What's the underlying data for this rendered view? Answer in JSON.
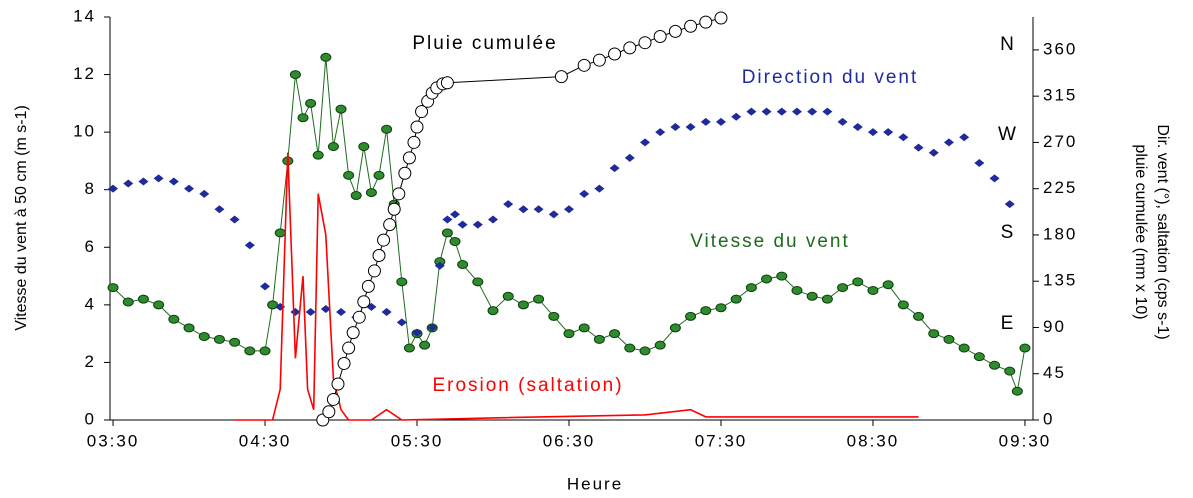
{
  "chart_data": {
    "type": "line",
    "x_label": "Heure",
    "y_label": "Vitesse du vent à 50 cm (m s-1)",
    "y2_label": [
      "Dir. vent (°), saltation (cps s-1)",
      "pluie cumulée (mm x 10)"
    ],
    "xlim": [
      3.48,
      9.553
    ],
    "xticks": [
      {
        "value": 3.5,
        "label": "03:30"
      },
      {
        "value": 4.5,
        "label": "04:30"
      },
      {
        "value": 5.5,
        "label": "05:30"
      },
      {
        "value": 6.5,
        "label": "06:30"
      },
      {
        "value": 7.5,
        "label": "07:30"
      },
      {
        "value": 8.5,
        "label": "08:30"
      },
      {
        "value": 9.5,
        "label": "09:30"
      }
    ],
    "ylim": [
      0,
      14
    ],
    "yticks": [
      0,
      2,
      4,
      6,
      8,
      10,
      12,
      14
    ],
    "y2lim": [
      0,
      392
    ],
    "y2ticks": [
      0,
      45,
      90,
      135,
      180,
      225,
      270,
      315,
      360
    ],
    "annotations": [
      "Pluie cumulée",
      "Direction du vent",
      "Vitesse du vent",
      "Erosion (saltation)",
      "N",
      "W",
      "S",
      "E"
    ],
    "series": [
      {
        "name": "Vitesse du vent",
        "color": "#1e6b1e",
        "marker": "circle",
        "line": true,
        "axis": "y",
        "x": [
          3.5,
          3.6,
          3.7,
          3.8,
          3.9,
          4.0,
          4.1,
          4.2,
          4.3,
          4.4,
          4.5,
          4.55,
          4.6,
          4.65,
          4.7,
          4.75,
          4.8,
          4.85,
          4.9,
          4.95,
          5.0,
          5.05,
          5.1,
          5.15,
          5.2,
          5.25,
          5.3,
          5.35,
          5.4,
          5.45,
          5.5,
          5.55,
          5.6,
          5.65,
          5.7,
          5.75,
          5.8,
          5.9,
          6.0,
          6.1,
          6.2,
          6.3,
          6.4,
          6.5,
          6.6,
          6.7,
          6.8,
          6.9,
          7.0,
          7.1,
          7.2,
          7.3,
          7.4,
          7.5,
          7.6,
          7.7,
          7.8,
          7.9,
          8.0,
          8.1,
          8.2,
          8.3,
          8.4,
          8.5,
          8.6,
          8.7,
          8.8,
          8.9,
          9.0,
          9.1,
          9.2,
          9.3,
          9.4,
          9.45,
          9.5
        ],
        "values": [
          4.6,
          4.1,
          4.2,
          4.0,
          3.5,
          3.2,
          2.9,
          2.8,
          2.7,
          2.4,
          2.4,
          4.0,
          6.5,
          9.0,
          12.0,
          10.5,
          11.0,
          9.2,
          12.6,
          9.5,
          10.8,
          8.5,
          7.8,
          9.5,
          7.9,
          8.5,
          10.1,
          7.5,
          4.8,
          2.5,
          3.0,
          2.6,
          3.2,
          5.5,
          6.5,
          6.2,
          5.4,
          4.8,
          3.8,
          4.3,
          4.0,
          4.2,
          3.6,
          3.0,
          3.2,
          2.8,
          3.0,
          2.5,
          2.4,
          2.6,
          3.2,
          3.6,
          3.8,
          3.9,
          4.2,
          4.6,
          4.9,
          5.0,
          4.5,
          4.3,
          4.2,
          4.6,
          4.8,
          4.5,
          4.7,
          4.0,
          3.6,
          3.0,
          2.8,
          2.5,
          2.2,
          1.9,
          1.7,
          1.0,
          2.5
        ]
      },
      {
        "name": "Direction du vent",
        "color": "#1f2a9c",
        "marker": "diamond",
        "line": false,
        "axis": "y2",
        "x": [
          3.5,
          3.6,
          3.7,
          3.8,
          3.9,
          4.0,
          4.1,
          4.2,
          4.3,
          4.4,
          4.5,
          4.6,
          4.7,
          4.8,
          4.9,
          5.0,
          5.1,
          5.2,
          5.3,
          5.4,
          5.5,
          5.6,
          5.65,
          5.7,
          5.75,
          5.8,
          5.9,
          6.0,
          6.1,
          6.2,
          6.3,
          6.4,
          6.5,
          6.6,
          6.7,
          6.8,
          6.9,
          7.0,
          7.1,
          7.2,
          7.3,
          7.4,
          7.5,
          7.6,
          7.7,
          7.8,
          7.9,
          8.0,
          8.1,
          8.2,
          8.3,
          8.4,
          8.5,
          8.6,
          8.7,
          8.8,
          8.9,
          9.0,
          9.1,
          9.2,
          9.3,
          9.4
        ],
        "values": [
          225,
          230,
          232,
          235,
          232,
          225,
          220,
          205,
          195,
          170,
          130,
          110,
          105,
          105,
          108,
          105,
          100,
          110,
          105,
          95,
          85,
          90,
          150,
          195,
          200,
          190,
          190,
          195,
          210,
          205,
          205,
          200,
          205,
          220,
          225,
          245,
          255,
          270,
          280,
          285,
          285,
          290,
          290,
          295,
          300,
          300,
          300,
          300,
          300,
          300,
          290,
          285,
          280,
          280,
          275,
          265,
          260,
          270,
          275,
          250,
          235,
          210
        ]
      },
      {
        "name": "Erosion (saltation)",
        "color": "#ff0000",
        "marker": null,
        "line": true,
        "axis": "y2",
        "x": [
          4.3,
          4.55,
          4.6,
          4.65,
          4.7,
          4.75,
          4.78,
          4.82,
          4.85,
          4.9,
          4.95,
          5.0,
          5.05,
          5.2,
          5.3,
          5.4,
          6.0,
          7.0,
          7.3,
          7.4,
          8.0,
          8.8
        ],
        "values": [
          0,
          0,
          30,
          260,
          60,
          140,
          30,
          10,
          220,
          180,
          40,
          10,
          0,
          0,
          10,
          0,
          2,
          5,
          10,
          3,
          3,
          3
        ]
      },
      {
        "name": "Pluie cumulée",
        "color": "#000000",
        "marker_fill": "#ffffff",
        "marker": "circle",
        "line": true,
        "axis": "y2",
        "x": [
          4.88,
          4.92,
          4.95,
          4.98,
          5.02,
          5.05,
          5.08,
          5.12,
          5.15,
          5.18,
          5.22,
          5.25,
          5.28,
          5.32,
          5.35,
          5.38,
          5.42,
          5.45,
          5.48,
          5.5,
          5.53,
          5.57,
          5.6,
          5.63,
          5.67,
          5.7,
          6.45,
          6.6,
          6.7,
          6.8,
          6.9,
          7.0,
          7.1,
          7.2,
          7.3,
          7.4,
          7.5
        ],
        "values": [
          0,
          8,
          20,
          35,
          55,
          70,
          85,
          100,
          115,
          130,
          145,
          160,
          175,
          190,
          205,
          220,
          240,
          255,
          270,
          285,
          300,
          310,
          318,
          323,
          327,
          328,
          334,
          345,
          350,
          356,
          362,
          367,
          373,
          378,
          383,
          387,
          391
        ]
      }
    ]
  }
}
